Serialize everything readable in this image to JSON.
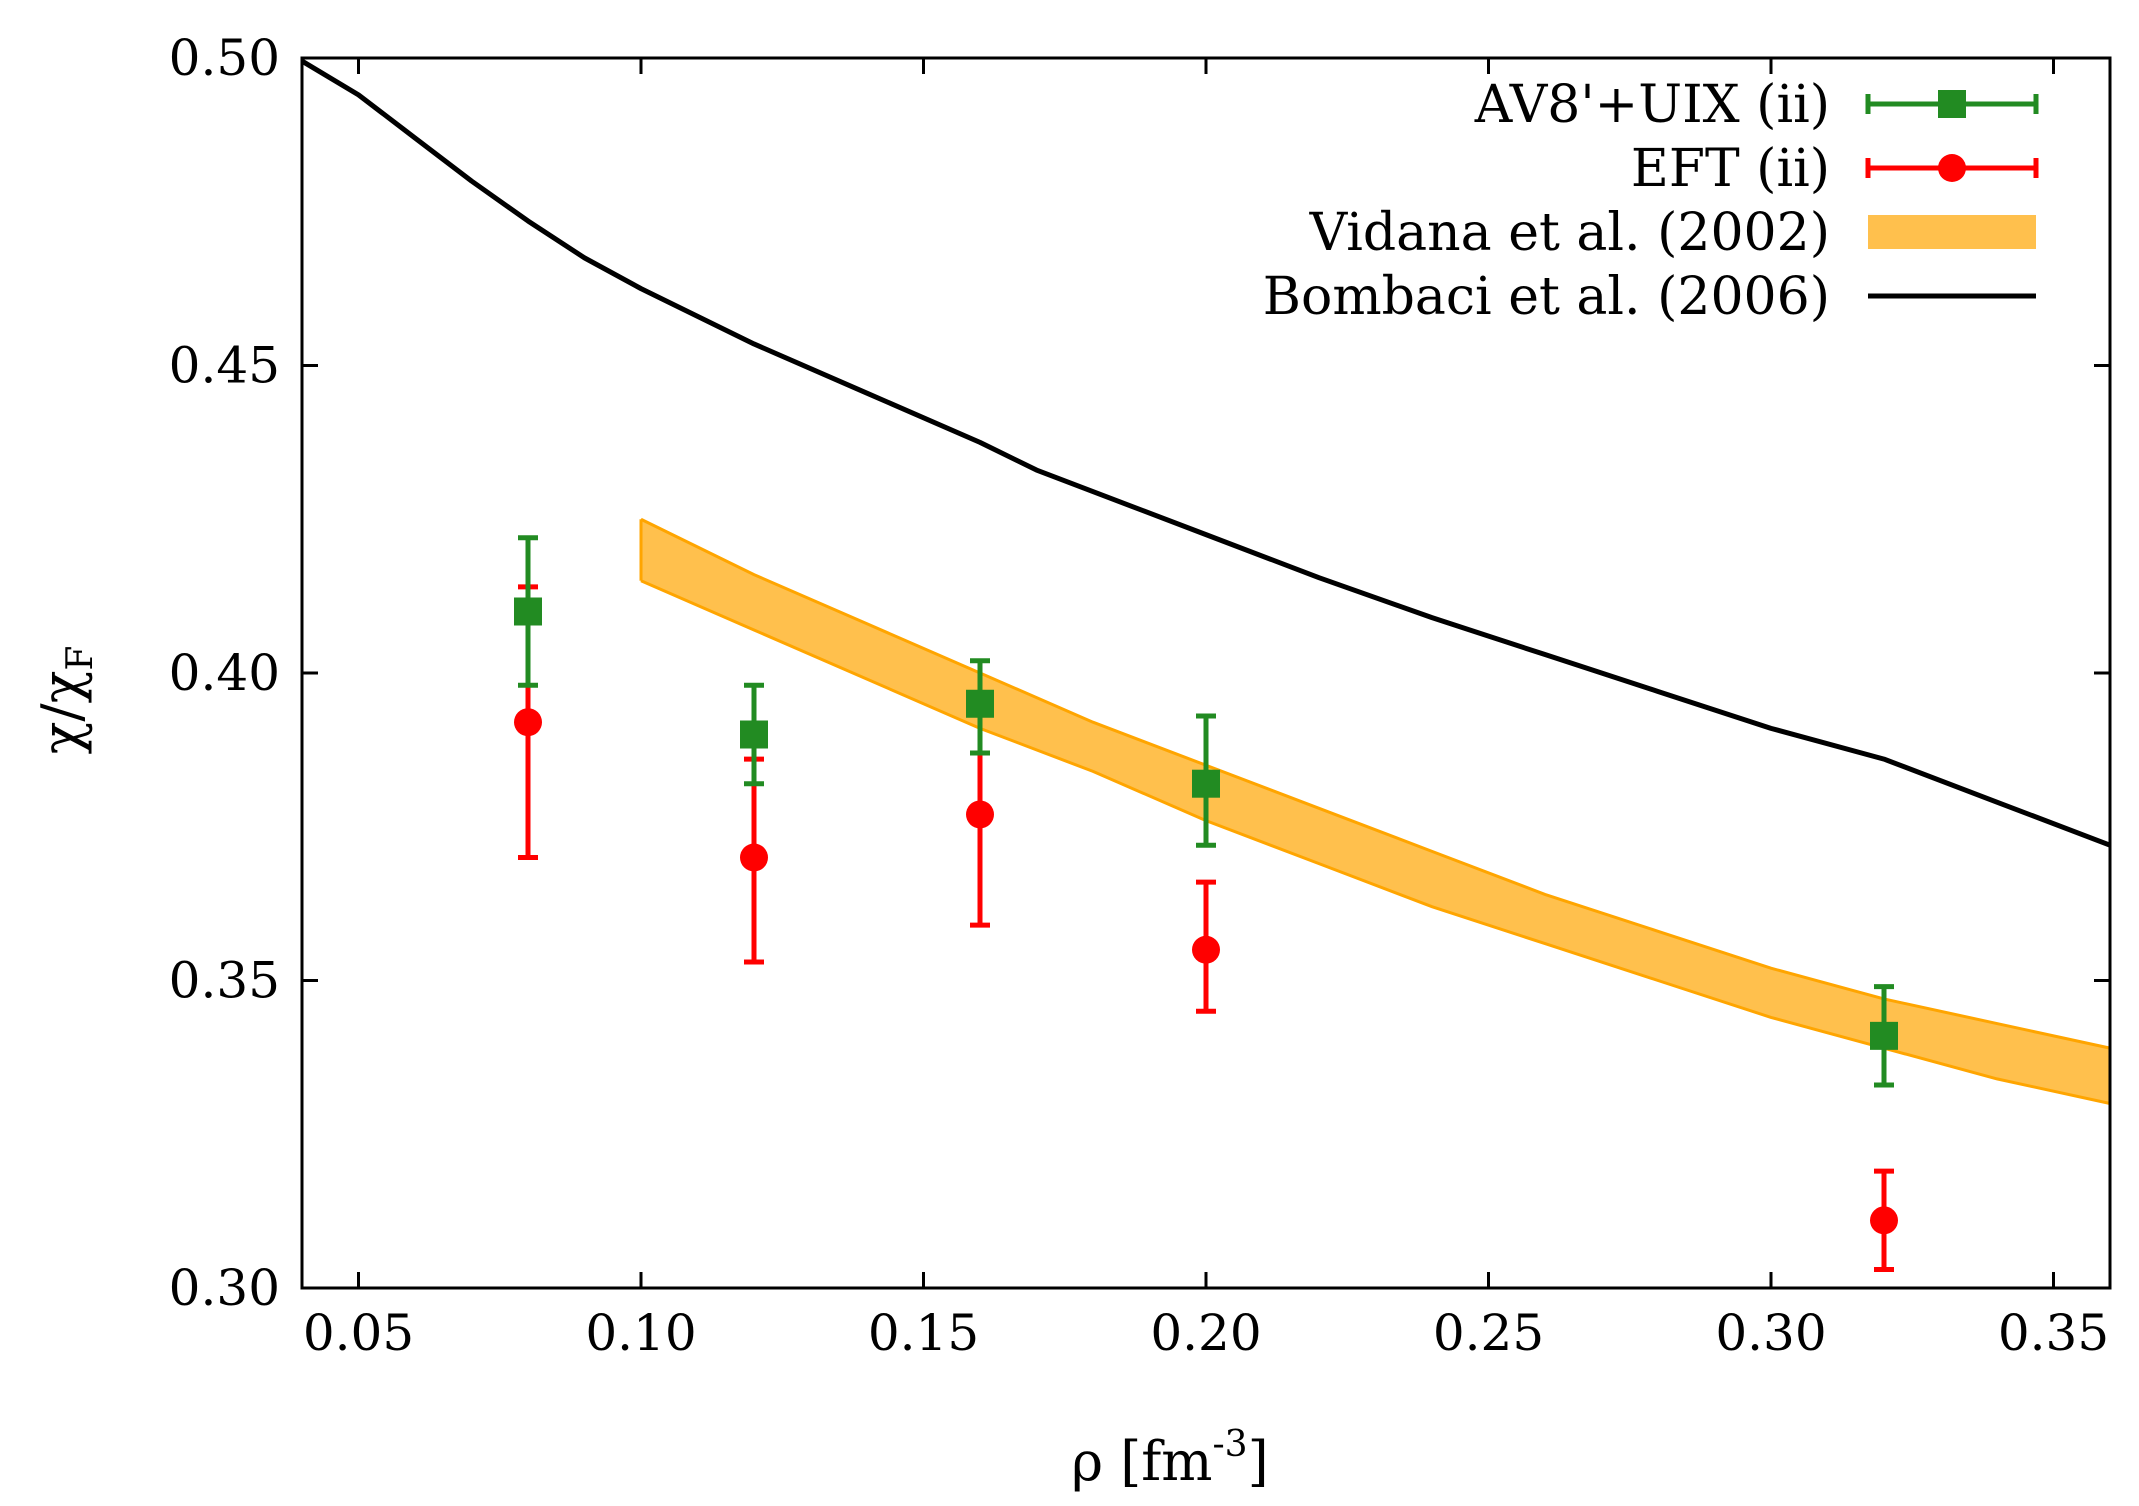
{
  "chart_data": {
    "type": "scatter",
    "xlabel": "ρ [fm",
    "xlabel_sup": "-3",
    "xlabel_end": "]",
    "ylabel": "χ/χ",
    "ylabel_sub": "F",
    "xlim": [
      0.04,
      0.36
    ],
    "ylim": [
      0.3,
      0.5
    ],
    "x_ticks": [
      0.05,
      0.1,
      0.15,
      0.2,
      0.25,
      0.3,
      0.35
    ],
    "x_tick_labels": [
      "0.05",
      "0.10",
      "0.15",
      "0.20",
      "0.25",
      "0.30",
      "0.35"
    ],
    "y_ticks": [
      0.3,
      0.35,
      0.4,
      0.45,
      0.5
    ],
    "y_tick_labels": [
      "0.30",
      "0.35",
      "0.40",
      "0.45",
      "0.50"
    ],
    "legend_position": "top-right",
    "series": [
      {
        "name": "AV8'+UIX (ii)",
        "kind": "points-errorbars",
        "marker": "square",
        "color": "#228B22",
        "x": [
          0.08,
          0.12,
          0.16,
          0.2,
          0.32
        ],
        "y": [
          0.41,
          0.39,
          0.395,
          0.382,
          0.341
        ],
        "err_low": [
          0.398,
          0.382,
          0.387,
          0.372,
          0.333
        ],
        "err_high": [
          0.422,
          0.398,
          0.402,
          0.393,
          0.349
        ]
      },
      {
        "name": "EFT (ii)",
        "kind": "points-errorbars",
        "marker": "circle",
        "color": "#ff0000",
        "x": [
          0.08,
          0.12,
          0.16,
          0.2,
          0.32
        ],
        "y": [
          0.392,
          0.37,
          0.377,
          0.355,
          0.311
        ],
        "err_low": [
          0.37,
          0.353,
          0.359,
          0.345,
          0.303
        ],
        "err_high": [
          0.414,
          0.386,
          0.395,
          0.366,
          0.319
        ]
      },
      {
        "name": "Vidana et al. (2002)",
        "kind": "band",
        "color": "#ffa500",
        "fill": "#ffc04d",
        "x": [
          0.1,
          0.12,
          0.14,
          0.16,
          0.18,
          0.2,
          0.22,
          0.24,
          0.26,
          0.28,
          0.3,
          0.32,
          0.34,
          0.36
        ],
        "upper": [
          0.425,
          0.416,
          0.408,
          0.4,
          0.392,
          0.385,
          0.378,
          0.371,
          0.364,
          0.358,
          0.352,
          0.347,
          0.343,
          0.339
        ],
        "lower": [
          0.415,
          0.407,
          0.399,
          0.391,
          0.384,
          0.376,
          0.369,
          0.362,
          0.356,
          0.35,
          0.344,
          0.339,
          0.334,
          0.33
        ]
      },
      {
        "name": "Bombaci et al. (2006)",
        "kind": "line",
        "color": "#000000",
        "x": [
          0.04,
          0.05,
          0.06,
          0.07,
          0.08,
          0.09,
          0.1,
          0.12,
          0.14,
          0.16,
          0.17,
          0.2,
          0.22,
          0.24,
          0.26,
          0.28,
          0.3,
          0.32,
          0.34,
          0.36
        ],
        "y": [
          0.4995,
          0.494,
          0.487,
          0.48,
          0.4735,
          0.4675,
          0.4625,
          0.4535,
          0.4455,
          0.4375,
          0.433,
          0.4225,
          0.4155,
          0.409,
          0.403,
          0.397,
          0.391,
          0.386,
          0.379,
          0.372
        ]
      }
    ]
  }
}
